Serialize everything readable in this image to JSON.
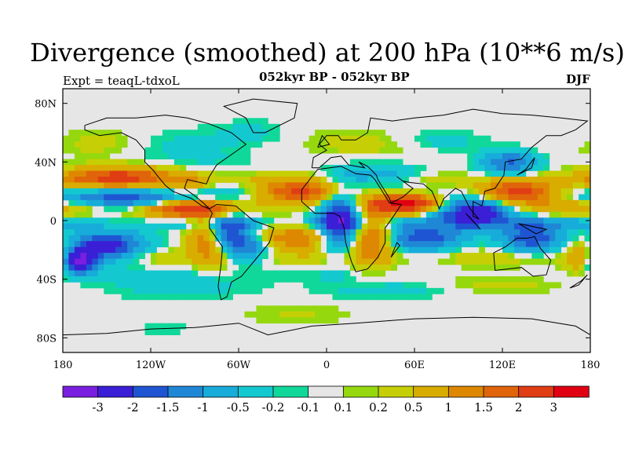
{
  "header": {
    "title": "Divergence (smoothed) at 200 hPa (10**6 m/s)",
    "subtitle": "052kyr BP - 052kyr BP",
    "left_label": "Expt = teaqL-tdxoL",
    "right_label": "DJF"
  },
  "chart_data": {
    "type": "heatmap",
    "title": "Divergence (smoothed) at 200 hPa (10**6 m/s)",
    "xlabel": "",
    "ylabel": "",
    "xlim": [
      -180,
      180
    ],
    "ylim": [
      -90,
      90
    ],
    "x_ticks": [
      {
        "value": -180,
        "label": "180"
      },
      {
        "value": -120,
        "label": "120W"
      },
      {
        "value": -60,
        "label": "60W"
      },
      {
        "value": 0,
        "label": "0"
      },
      {
        "value": 60,
        "label": "60E"
      },
      {
        "value": 120,
        "label": "120E"
      },
      {
        "value": 180,
        "label": "180"
      }
    ],
    "y_ticks": [
      {
        "value": 80,
        "label": "80N"
      },
      {
        "value": 40,
        "label": "40N"
      },
      {
        "value": 0,
        "label": "0"
      },
      {
        "value": -40,
        "label": "40S"
      },
      {
        "value": -80,
        "label": "80S"
      }
    ],
    "colorbar": {
      "levels": [
        "-3",
        "-2",
        "-1.5",
        "-1",
        "-0.5",
        "-0.2",
        "-0.1",
        "0.1",
        "0.2",
        "0.5",
        "1",
        "1.5",
        "2",
        "3"
      ],
      "colors": [
        "#7a1ee0",
        "#3a1fd6",
        "#1f55d2",
        "#1f87d6",
        "#17acd9",
        "#14c8d0",
        "#10d89a",
        "#e6e6e6",
        "#95d80e",
        "#c6cf05",
        "#d9ac00",
        "#dd8800",
        "#e0640a",
        "#e03d14",
        "#e00012"
      ]
    },
    "blobs": [
      {
        "lon": -140,
        "lat": 15,
        "rx": 45,
        "ry": 6,
        "value": -2.0
      },
      {
        "lon": -150,
        "lat": -18,
        "rx": 25,
        "ry": 10,
        "value": -2.5
      },
      {
        "lon": -170,
        "lat": -28,
        "rx": 12,
        "ry": 8,
        "value": -3.5
      },
      {
        "lon": -140,
        "lat": 30,
        "rx": 38,
        "ry": 7,
        "value": 2.5
      },
      {
        "lon": -100,
        "lat": 8,
        "rx": 25,
        "ry": 6,
        "value": 2.0
      },
      {
        "lon": -95,
        "lat": 25,
        "rx": 15,
        "ry": 6,
        "value": 1.0
      },
      {
        "lon": -78,
        "lat": -10,
        "rx": 14,
        "ry": 18,
        "value": 2.5
      },
      {
        "lon": -70,
        "lat": -8,
        "rx": 14,
        "ry": 12,
        "value": -3.0
      },
      {
        "lon": -55,
        "lat": -18,
        "rx": 15,
        "ry": 10,
        "value": -1.5
      },
      {
        "lon": -60,
        "lat": 18,
        "rx": 35,
        "ry": 10,
        "value": -1.0
      },
      {
        "lon": -90,
        "lat": 50,
        "rx": 40,
        "ry": 15,
        "value": -0.5
      },
      {
        "lon": -155,
        "lat": 55,
        "rx": 25,
        "ry": 10,
        "value": 0.5
      },
      {
        "lon": -50,
        "lat": 62,
        "rx": 22,
        "ry": 8,
        "value": -0.5
      },
      {
        "lon": -20,
        "lat": 20,
        "rx": 35,
        "ry": 8,
        "value": 2.5
      },
      {
        "lon": -20,
        "lat": -12,
        "rx": 30,
        "ry": 8,
        "value": 1.5
      },
      {
        "lon": 10,
        "lat": 0,
        "rx": 15,
        "ry": 20,
        "value": -3.0
      },
      {
        "lon": 35,
        "lat": 30,
        "rx": 30,
        "ry": 8,
        "value": -1.0
      },
      {
        "lon": 30,
        "lat": -10,
        "rx": 15,
        "ry": 20,
        "value": 2.0
      },
      {
        "lon": 55,
        "lat": 12,
        "rx": 20,
        "ry": 6,
        "value": 2.5
      },
      {
        "lon": 65,
        "lat": -12,
        "rx": 25,
        "ry": 8,
        "value": -2.0
      },
      {
        "lon": 100,
        "lat": 5,
        "rx": 25,
        "ry": 10,
        "value": -3.0
      },
      {
        "lon": 130,
        "lat": 20,
        "rx": 25,
        "ry": 8,
        "value": 2.5
      },
      {
        "lon": 125,
        "lat": 40,
        "rx": 18,
        "ry": 8,
        "value": -2.0
      },
      {
        "lon": 140,
        "lat": -12,
        "rx": 20,
        "ry": 10,
        "value": -2.0
      },
      {
        "lon": 175,
        "lat": -25,
        "rx": 12,
        "ry": 10,
        "value": 1.5
      },
      {
        "lon": 20,
        "lat": 55,
        "rx": 35,
        "ry": 10,
        "value": 0.5
      },
      {
        "lon": 80,
        "lat": 55,
        "rx": 30,
        "ry": 8,
        "value": -0.5
      },
      {
        "lon": -100,
        "lat": -45,
        "rx": 50,
        "ry": 10,
        "value": -0.5
      },
      {
        "lon": 40,
        "lat": -48,
        "rx": 45,
        "ry": 6,
        "value": -0.5
      },
      {
        "lon": 120,
        "lat": -42,
        "rx": 40,
        "ry": 8,
        "value": 0.5
      },
      {
        "lon": -20,
        "lat": -65,
        "rx": 40,
        "ry": 8,
        "value": 0.5
      },
      {
        "lon": -110,
        "lat": -75,
        "rx": 30,
        "ry": 6,
        "value": -0.5
      }
    ],
    "bands": [
      {
        "lat": 10,
        "width": 6,
        "value": 2.0
      },
      {
        "lat": -2,
        "width": 4,
        "value": -1.5
      },
      {
        "lat": 28,
        "width": 5,
        "value": 1.0
      },
      {
        "lat": -25,
        "width": 6,
        "value": 1.0
      },
      {
        "lat": -38,
        "width": 5,
        "value": -0.5
      },
      {
        "lat": 48,
        "width": 5,
        "value": 0.2
      }
    ]
  }
}
